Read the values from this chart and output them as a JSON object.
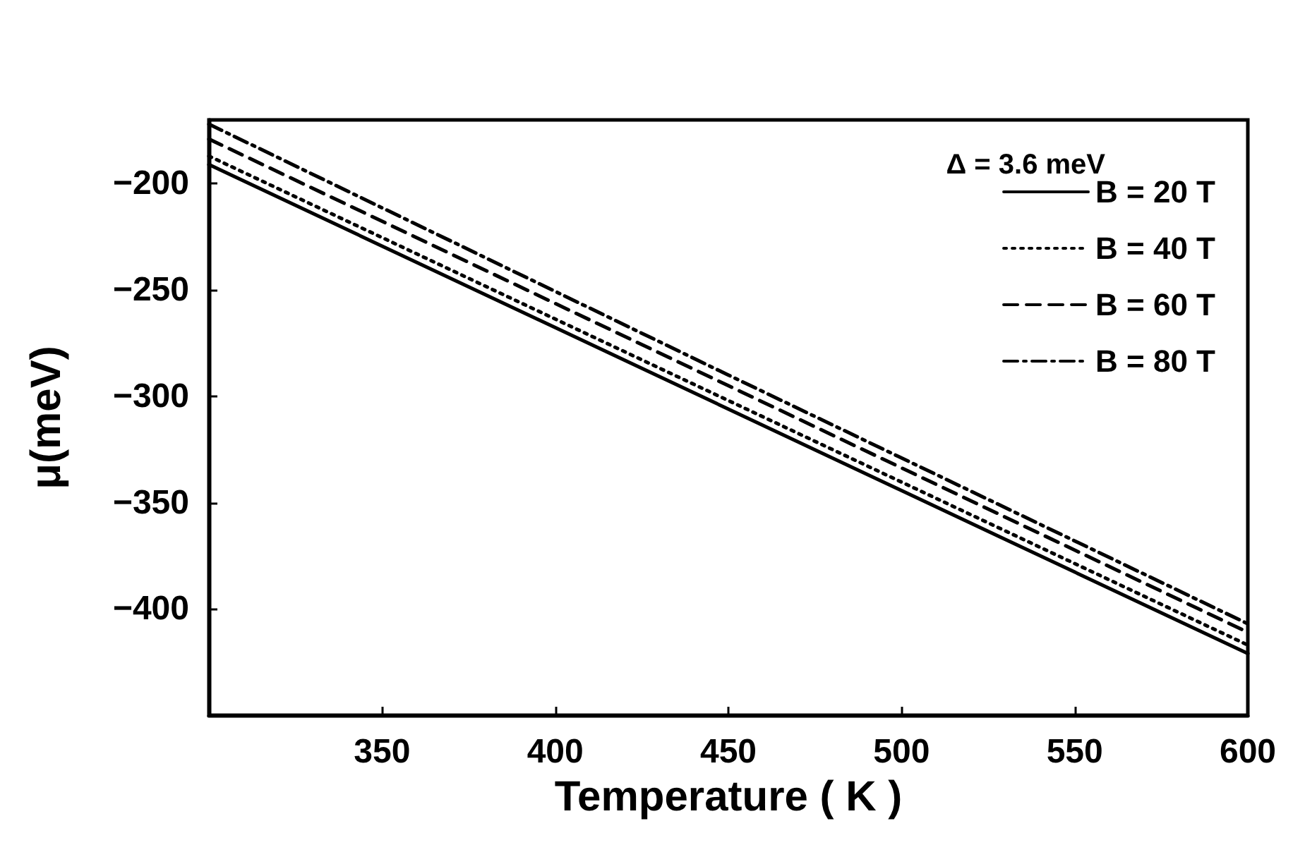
{
  "chart_data": {
    "type": "line",
    "xlabel": "Temperature ( K )",
    "ylabel": "μ(meV)",
    "legend_title": "Δ = 3.6 meV",
    "xlim": [
      300,
      600
    ],
    "xticks": [
      350,
      400,
      450,
      500,
      550,
      600
    ],
    "ylim": [
      -450,
      -170
    ],
    "yticks": [
      -400,
      -350,
      -300,
      -250,
      -200
    ],
    "grid": false,
    "legend": "top right",
    "marker": "none",
    "series": [
      {
        "name": "B = 20 T",
        "color": "#000000",
        "line_style": "solid",
        "x": [
          300,
          450,
          600
        ],
        "values": [
          -191,
          -306,
          -421
        ]
      },
      {
        "name": "B = 40 T",
        "color": "#000000",
        "line_style": "dotted",
        "x": [
          300,
          450,
          600
        ],
        "values": [
          -187,
          -302,
          -417
        ]
      },
      {
        "name": "B = 60 T",
        "color": "#000000",
        "line_style": "dashed",
        "x": [
          300,
          450,
          600
        ],
        "values": [
          -179,
          -295,
          -411
        ]
      },
      {
        "name": "B = 80 T",
        "color": "#000000",
        "line_style": "dashdot",
        "x": [
          300,
          450,
          600
        ],
        "values": [
          -172,
          -290,
          -407
        ]
      }
    ]
  }
}
